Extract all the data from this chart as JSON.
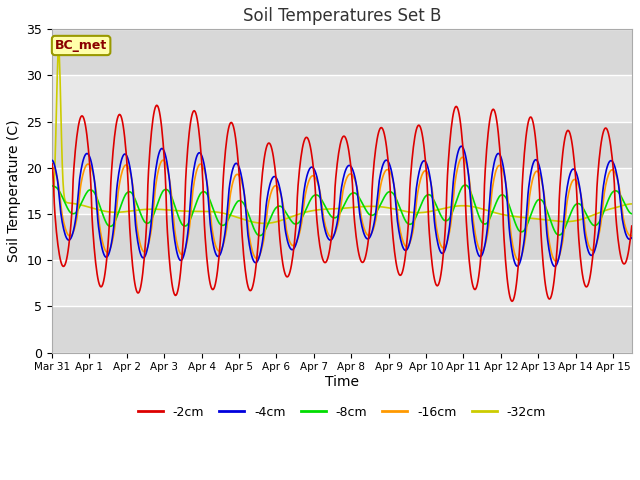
{
  "title": "Soil Temperatures Set B",
  "xlabel": "Time",
  "ylabel": "Soil Temperature (C)",
  "ylim": [
    0,
    35
  ],
  "yticks": [
    0,
    5,
    10,
    15,
    20,
    25,
    30,
    35
  ],
  "annotation_text": "BC_met",
  "series_colors": {
    "-2cm": "#dd0000",
    "-4cm": "#0000dd",
    "-8cm": "#00dd00",
    "-16cm": "#ff9900",
    "-32cm": "#cccc00"
  },
  "xtick_labels": [
    "Mar 31",
    "Apr 1",
    "Apr 2",
    "Apr 3",
    "Apr 4",
    "Apr 5",
    "Apr 6",
    "Apr 7",
    "Apr 8",
    "Apr 9",
    "Apr 10",
    "Apr 11",
    "Apr 12",
    "Apr 13",
    "Apr 14",
    "Apr 15"
  ],
  "legend_colors": [
    "#dd0000",
    "#0000dd",
    "#00dd00",
    "#ff9900",
    "#cccc00"
  ],
  "legend_labels": [
    "-2cm",
    "-4cm",
    "-8cm",
    "-16cm",
    "-32cm"
  ],
  "n_days": 15.5,
  "n_points": 800,
  "mean_temp": 15.5,
  "lw": 1.2
}
